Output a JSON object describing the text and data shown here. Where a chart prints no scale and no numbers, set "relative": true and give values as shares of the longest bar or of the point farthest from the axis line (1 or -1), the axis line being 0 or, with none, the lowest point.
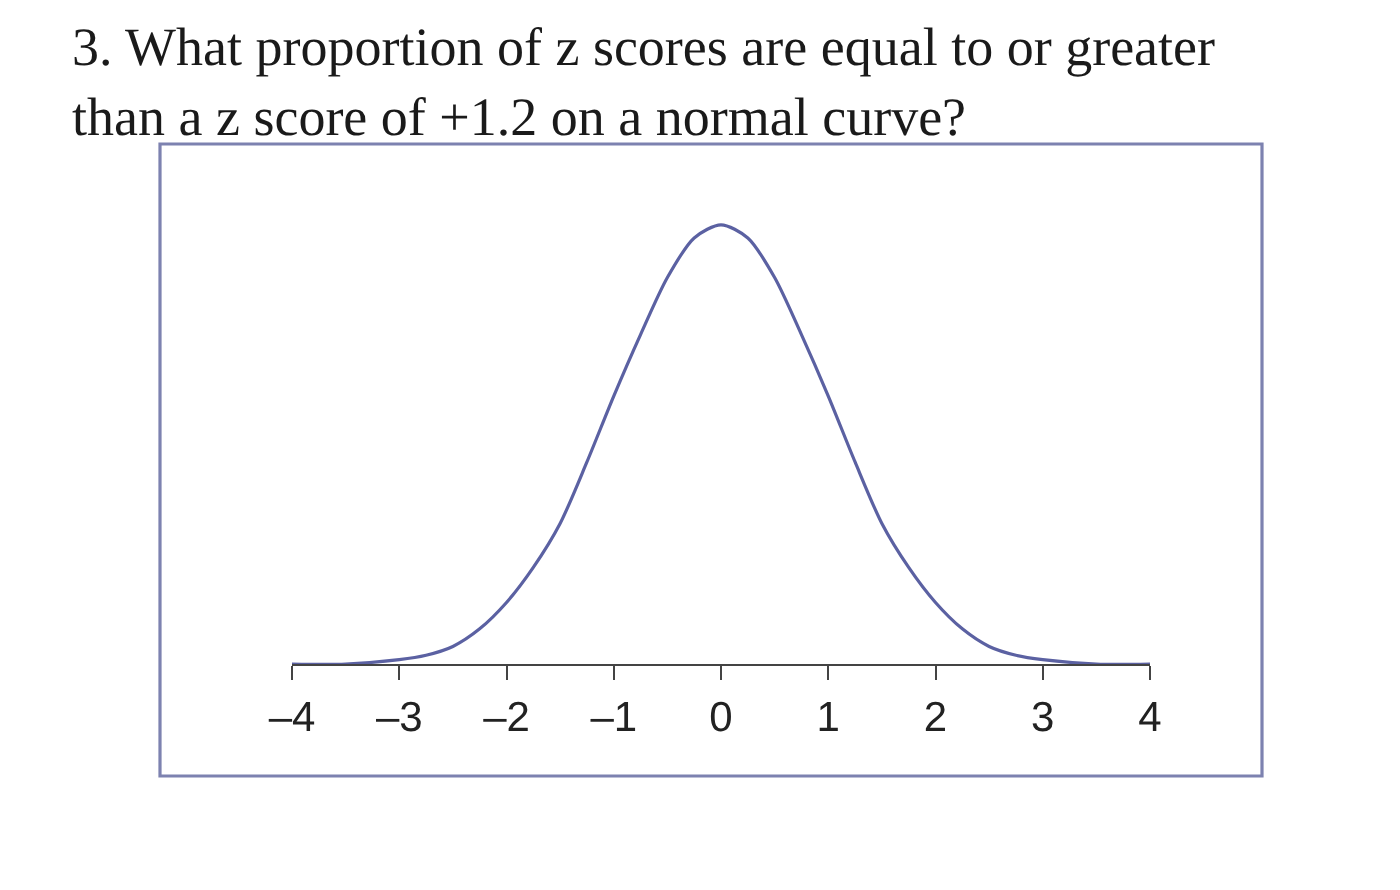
{
  "chart_data": {
    "type": "line",
    "title": "3. What proportion of z scores are equal to or greater\nthan a z score of +1.2 on a normal curve?",
    "relative": true,
    "x": [
      -4,
      -3.5,
      -3,
      -2.75,
      -2.5,
      -2.25,
      -2,
      -1.75,
      -1.5,
      -1.25,
      -1,
      -0.75,
      -0.5,
      -0.25,
      0,
      0.25,
      0.5,
      0.75,
      1,
      1.25,
      1.5,
      1.75,
      2,
      2.25,
      2.5,
      2.75,
      3,
      3.5,
      4
    ],
    "series": [
      {
        "color": "#5b61a2",
        "values": [
          0,
          0,
          0.01,
          0.02,
          0.04,
          0.08,
          0.14,
          0.22,
          0.32,
          0.46,
          0.61,
          0.75,
          0.88,
          0.97,
          1,
          0.97,
          0.88,
          0.75,
          0.61,
          0.46,
          0.32,
          0.22,
          0.14,
          0.08,
          0.04,
          0.02,
          0.01,
          0,
          0
        ]
      }
    ],
    "xlim": [
      -4,
      4
    ],
    "xticks": [
      {
        "value": -4,
        "label": "–4"
      },
      {
        "value": -3,
        "label": "–3"
      },
      {
        "value": -2,
        "label": "–2"
      },
      {
        "value": -1,
        "label": "–1"
      },
      0,
      1,
      2,
      3,
      4
    ]
  }
}
